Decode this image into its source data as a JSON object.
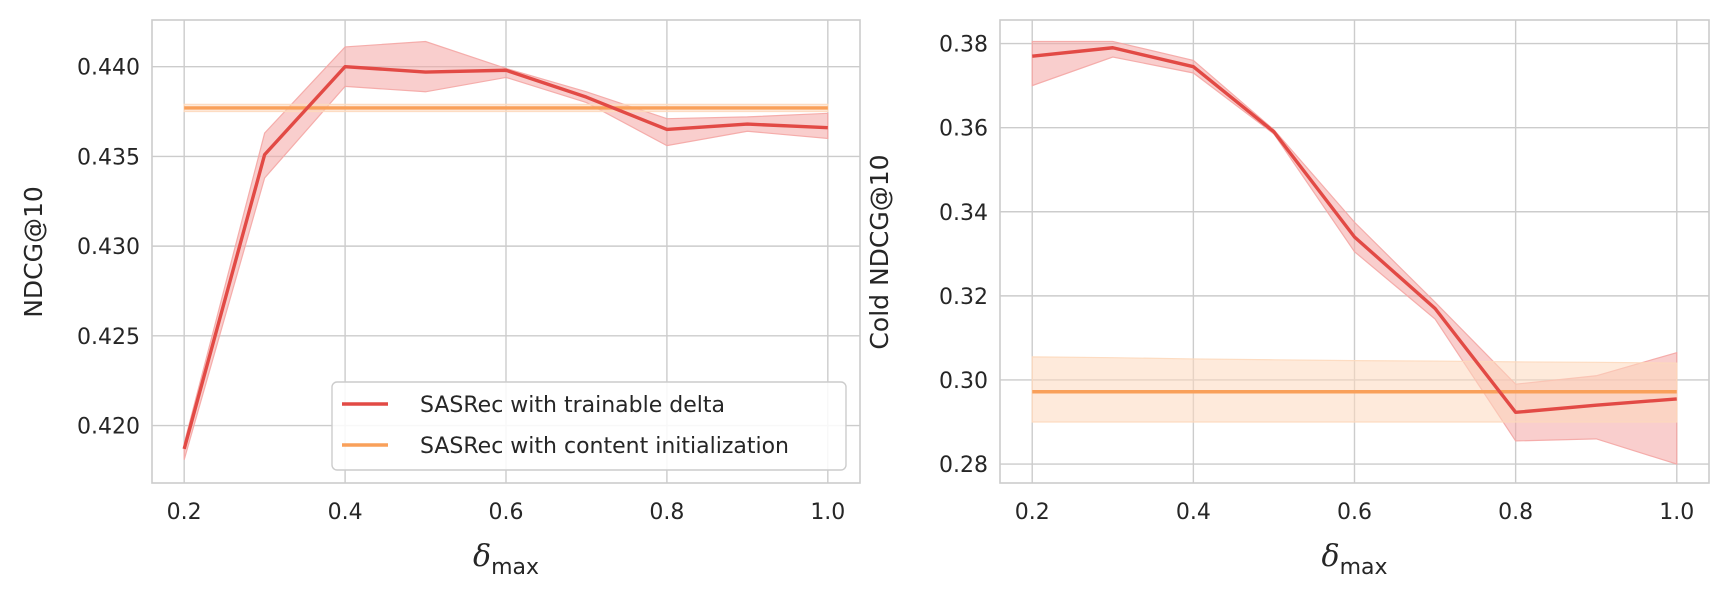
{
  "colors": {
    "trainable": "#e24a45",
    "trainable_band": "#f4a6a4",
    "content": "#f9a05a",
    "content_band": "#fdd9bd",
    "grid": "#cccccc",
    "text": "#262626"
  },
  "chart_data": [
    {
      "type": "line",
      "xlabel": "δ",
      "xlabel_sub": "max",
      "ylabel": "NDCG@10",
      "xlim": [
        0.16,
        1.04
      ],
      "ylim": [
        0.4168,
        0.4426
      ],
      "xticks": [
        0.2,
        0.4,
        0.6,
        0.8,
        1.0
      ],
      "xtick_labels": [
        "0.2",
        "0.4",
        "0.6",
        "0.8",
        "1.0"
      ],
      "yticks": [
        0.42,
        0.425,
        0.43,
        0.435,
        0.44
      ],
      "ytick_labels": [
        "0.420",
        "0.425",
        "0.430",
        "0.435",
        "0.440"
      ],
      "grid": true,
      "legend": "lower-right",
      "legend_entries": [
        "SASRec with trainable delta",
        "SASRec with content initialization"
      ],
      "x": [
        0.2,
        0.3,
        0.4,
        0.5,
        0.6,
        0.7,
        0.8,
        0.9,
        1.0
      ],
      "series": [
        {
          "name": "SASRec with trainable delta",
          "color": "#e24a45",
          "values": [
            0.4187,
            0.4351,
            0.44,
            0.4397,
            0.4398,
            0.4383,
            0.4365,
            0.4368,
            0.4366
          ],
          "lower": [
            0.4181,
            0.4338,
            0.4389,
            0.4386,
            0.4394,
            0.438,
            0.4356,
            0.4364,
            0.436
          ],
          "upper": [
            0.419,
            0.4363,
            0.4411,
            0.4414,
            0.4399,
            0.4386,
            0.4371,
            0.4372,
            0.4374
          ]
        },
        {
          "name": "SASRec with content initialization",
          "color": "#f9a05a",
          "values": [
            0.4377,
            0.4377,
            0.4377,
            0.4377,
            0.4377,
            0.4377,
            0.4377,
            0.4377,
            0.4377
          ],
          "lower": [
            0.4375,
            0.4375,
            0.4375,
            0.4375,
            0.4375,
            0.4375,
            0.4375,
            0.4375,
            0.4375
          ],
          "upper": [
            0.4379,
            0.4379,
            0.4379,
            0.4379,
            0.4379,
            0.4379,
            0.4379,
            0.4379,
            0.4379
          ]
        }
      ]
    },
    {
      "type": "line",
      "xlabel": "δ",
      "xlabel_sub": "max",
      "ylabel": "Cold NDCG@10",
      "xlim": [
        0.16,
        1.04
      ],
      "ylim": [
        0.2755,
        0.3856
      ],
      "xticks": [
        0.2,
        0.4,
        0.6,
        0.8,
        1.0
      ],
      "xtick_labels": [
        "0.2",
        "0.4",
        "0.6",
        "0.8",
        "1.0"
      ],
      "yticks": [
        0.28,
        0.3,
        0.32,
        0.34,
        0.36,
        0.38
      ],
      "ytick_labels": [
        "0.28",
        "0.30",
        "0.32",
        "0.34",
        "0.36",
        "0.38"
      ],
      "grid": true,
      "x": [
        0.2,
        0.3,
        0.4,
        0.5,
        0.6,
        0.7,
        0.8,
        0.9,
        1.0
      ],
      "series": [
        {
          "name": "SASRec with trainable delta",
          "color": "#e24a45",
          "values": [
            0.377,
            0.379,
            0.3745,
            0.359,
            0.334,
            0.317,
            0.2923,
            0.294,
            0.2955
          ],
          "lower": [
            0.37,
            0.3768,
            0.373,
            0.3585,
            0.3305,
            0.3145,
            0.2855,
            0.286,
            0.28
          ],
          "upper": [
            0.3805,
            0.3805,
            0.376,
            0.3595,
            0.3375,
            0.3185,
            0.299,
            0.301,
            0.3065
          ]
        },
        {
          "name": "SASRec with content initialization",
          "color": "#f9a05a",
          "values": [
            0.2972,
            0.2972,
            0.2972,
            0.2972,
            0.2972,
            0.2972,
            0.2972,
            0.2972,
            0.2972
          ],
          "lower": [
            0.29,
            0.29,
            0.29,
            0.29,
            0.29,
            0.29,
            0.29,
            0.29,
            0.29
          ],
          "upper": [
            0.3055,
            0.3053,
            0.305,
            0.3048,
            0.3046,
            0.3045,
            0.3043,
            0.3042,
            0.304
          ]
        }
      ]
    }
  ]
}
